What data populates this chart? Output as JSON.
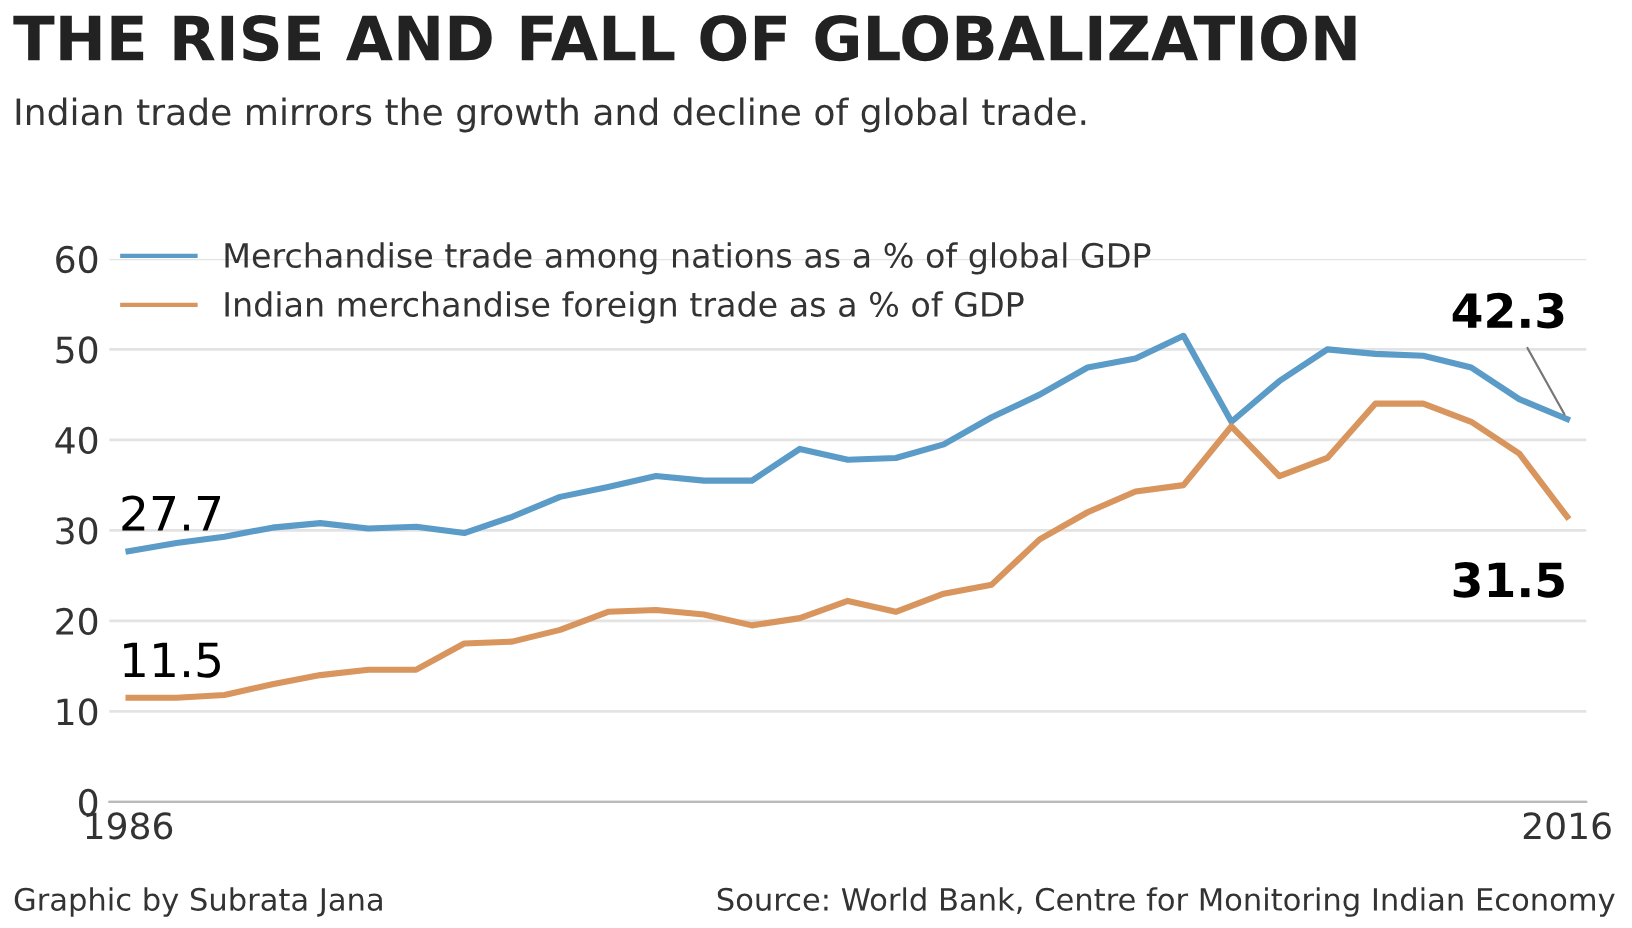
{
  "chart_data": {
    "type": "line",
    "title": "THE RISE AND FALL OF GLOBALIZATION",
    "subtitle": "Indian trade mirrors the growth and decline of global trade.",
    "x": [
      1986,
      1987,
      1988,
      1989,
      1990,
      1991,
      1992,
      1993,
      1994,
      1995,
      1996,
      1997,
      1998,
      1999,
      2000,
      2001,
      2002,
      2003,
      2004,
      2005,
      2006,
      2007,
      2008,
      2009,
      2010,
      2011,
      2012,
      2013,
      2014,
      2015,
      2016
    ],
    "series": [
      {
        "name": "Merchandise trade among nations as a % of global GDP",
        "color": "#5b9bc8",
        "values": [
          27.7,
          28.6,
          29.3,
          30.3,
          30.8,
          30.2,
          30.4,
          29.7,
          31.5,
          33.7,
          34.8,
          36.0,
          35.5,
          35.5,
          39.0,
          37.8,
          38.0,
          39.5,
          42.5,
          45.0,
          48.0,
          49.0,
          51.5,
          42.0,
          46.5,
          50.0,
          49.5,
          49.3,
          48.0,
          44.5,
          42.3
        ],
        "value_labels": [
          "27.7",
          null,
          null,
          null,
          null,
          null,
          null,
          null,
          null,
          null,
          null,
          null,
          null,
          null,
          null,
          null,
          null,
          null,
          null,
          null,
          null,
          null,
          null,
          null,
          null,
          null,
          null,
          null,
          null,
          null,
          "42.3"
        ]
      },
      {
        "name": "Indian merchandise foreign trade as a % of GDP",
        "color": "#d9955e",
        "values": [
          11.5,
          11.5,
          11.8,
          13.0,
          14.0,
          14.6,
          14.6,
          17.5,
          17.7,
          19.0,
          21.0,
          21.2,
          20.7,
          19.5,
          20.3,
          22.2,
          21.0,
          23.0,
          24.0,
          29.0,
          32.0,
          34.3,
          35.0,
          41.5,
          36.0,
          38.0,
          44.0,
          44.0,
          42.0,
          38.5,
          31.5
        ],
        "value_labels": [
          "11.5",
          null,
          null,
          null,
          null,
          null,
          null,
          null,
          null,
          null,
          null,
          null,
          null,
          null,
          null,
          null,
          null,
          null,
          null,
          null,
          null,
          null,
          null,
          null,
          null,
          null,
          null,
          null,
          null,
          null,
          "31.5"
        ]
      }
    ],
    "xlim": [
      1985.6,
      2016.4
    ],
    "xticks": [
      1986,
      2016
    ],
    "ylim": [
      0,
      60
    ],
    "yticks": [
      0,
      10,
      20,
      30,
      40,
      50,
      60
    ],
    "grid": "y",
    "legend": "top left",
    "marker": "none",
    "line_style": "solid",
    "annotations": [
      "Graphic by Subrata Jana",
      "Source: World Bank, Centre for Monitoring Indian Economy"
    ]
  }
}
